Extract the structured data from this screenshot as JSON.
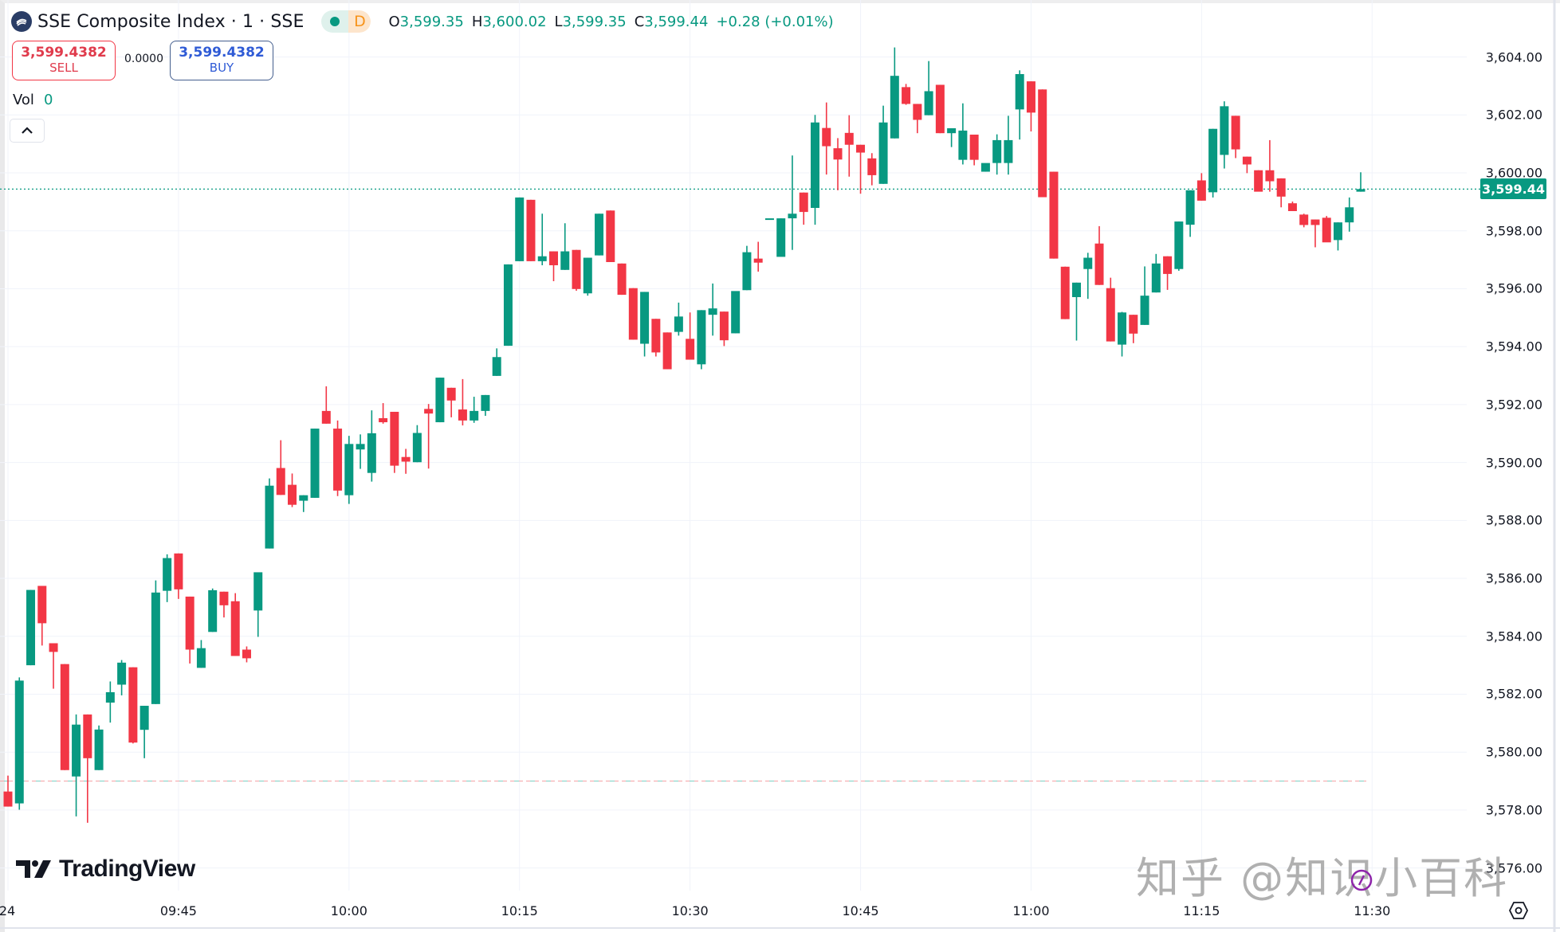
{
  "header": {
    "title": "SSE Composite Index · 1 · SSE",
    "status_delay_label": "D",
    "ohlc": {
      "o_label": "O",
      "o": "3,599.35",
      "h_label": "H",
      "h": "3,600.02",
      "l_label": "L",
      "l": "3,599.35",
      "c_label": "C",
      "c": "3,599.44",
      "change": "+0.28 (+0.01%)"
    }
  },
  "trade": {
    "sell_price": "3,599.4382",
    "sell_label": "SELL",
    "spread": "0.0000",
    "buy_price": "3,599.4382",
    "buy_label": "BUY"
  },
  "volume": {
    "label": "Vol",
    "value": "0"
  },
  "price_axis": {
    "labels": [
      "3,604.00",
      "3,602.00",
      "3,600.00",
      "3,598.00",
      "3,596.00",
      "3,594.00",
      "3,592.00",
      "3,590.00",
      "3,588.00",
      "3,586.00",
      "3,584.00",
      "3,582.00",
      "3,580.00",
      "3,578.00",
      "3,576.00"
    ],
    "last_price": "3,599.44"
  },
  "time_axis": {
    "labels": [
      "24",
      "09:45",
      "10:00",
      "10:15",
      "10:30",
      "10:45",
      "11:00",
      "11:15",
      "11:30"
    ]
  },
  "branding": {
    "logo_text": "TradingView"
  },
  "watermark": "知乎 @知识小百科",
  "colors": {
    "up": "#089981",
    "down": "#f23645",
    "grid": "#f0f3fa",
    "last_price": "#089981"
  },
  "chart_data": {
    "type": "candlestick",
    "title": "SSE Composite Index · 1 · SSE",
    "interval": "1 minute",
    "xlabel": "",
    "ylabel": "",
    "ylim": [
      3575.6,
      3605.3
    ],
    "grid": true,
    "x_ticks": [
      "09:45",
      "10:00",
      "10:15",
      "10:30",
      "10:45",
      "11:00",
      "11:15",
      "11:30"
    ],
    "y_ticks": [
      3604,
      3602,
      3600,
      3598,
      3596,
      3594,
      3592,
      3590,
      3588,
      3586,
      3584,
      3582,
      3580,
      3578,
      3576
    ],
    "last_price": 3599.44,
    "base_line": 3579.0,
    "candles": [
      {
        "o": 3578.64,
        "h": 3579.19,
        "l": 3578.12,
        "c": 3578.12
      },
      {
        "o": 3578.23,
        "h": 3582.58,
        "l": 3578.01,
        "c": 3582.47
      },
      {
        "o": 3583.0,
        "h": 3585.6,
        "l": 3583.0,
        "c": 3585.6
      },
      {
        "o": 3585.74,
        "h": 3585.74,
        "l": 3583.68,
        "c": 3584.45
      },
      {
        "o": 3583.76,
        "h": 3583.76,
        "l": 3582.19,
        "c": 3583.46
      },
      {
        "o": 3583.04,
        "h": 3583.04,
        "l": 3579.38,
        "c": 3579.38
      },
      {
        "o": 3579.16,
        "h": 3581.3,
        "l": 3577.78,
        "c": 3580.95
      },
      {
        "o": 3581.3,
        "h": 3581.3,
        "l": 3577.56,
        "c": 3579.79
      },
      {
        "o": 3579.38,
        "h": 3580.92,
        "l": 3579.38,
        "c": 3580.78
      },
      {
        "o": 3581.71,
        "h": 3582.44,
        "l": 3581.02,
        "c": 3582.07
      },
      {
        "o": 3582.33,
        "h": 3583.18,
        "l": 3581.96,
        "c": 3583.09
      },
      {
        "o": 3582.93,
        "h": 3582.93,
        "l": 3580.3,
        "c": 3580.33
      },
      {
        "o": 3580.77,
        "h": 3581.6,
        "l": 3579.79,
        "c": 3581.6
      },
      {
        "o": 3581.66,
        "h": 3585.93,
        "l": 3581.66,
        "c": 3585.51
      },
      {
        "o": 3585.57,
        "h": 3586.83,
        "l": 3585.18,
        "c": 3586.7
      },
      {
        "o": 3586.86,
        "h": 3586.86,
        "l": 3585.29,
        "c": 3585.62
      },
      {
        "o": 3585.37,
        "h": 3585.37,
        "l": 3583.06,
        "c": 3583.54
      },
      {
        "o": 3582.91,
        "h": 3583.87,
        "l": 3582.91,
        "c": 3583.59
      },
      {
        "o": 3584.15,
        "h": 3585.65,
        "l": 3584.15,
        "c": 3585.59
      },
      {
        "o": 3585.54,
        "h": 3585.54,
        "l": 3584.65,
        "c": 3585.07
      },
      {
        "o": 3585.21,
        "h": 3585.49,
        "l": 3583.32,
        "c": 3583.32
      },
      {
        "o": 3583.54,
        "h": 3583.65,
        "l": 3583.1,
        "c": 3583.24
      },
      {
        "o": 3584.89,
        "h": 3586.16,
        "l": 3583.98,
        "c": 3586.21
      },
      {
        "o": 3587.03,
        "h": 3589.45,
        "l": 3587.03,
        "c": 3589.2
      },
      {
        "o": 3589.81,
        "h": 3590.77,
        "l": 3588.88,
        "c": 3588.88
      },
      {
        "o": 3589.23,
        "h": 3589.62,
        "l": 3588.46,
        "c": 3588.54
      },
      {
        "o": 3588.68,
        "h": 3588.87,
        "l": 3588.29,
        "c": 3588.87
      },
      {
        "o": 3588.78,
        "h": 3591.17,
        "l": 3588.78,
        "c": 3591.17
      },
      {
        "o": 3591.78,
        "h": 3592.63,
        "l": 3591.34,
        "c": 3591.34
      },
      {
        "o": 3591.17,
        "h": 3591.45,
        "l": 3588.84,
        "c": 3589.03
      },
      {
        "o": 3588.87,
        "h": 3590.92,
        "l": 3588.57,
        "c": 3590.64
      },
      {
        "o": 3590.45,
        "h": 3590.97,
        "l": 3589.78,
        "c": 3590.64
      },
      {
        "o": 3589.64,
        "h": 3591.8,
        "l": 3589.34,
        "c": 3591.01
      },
      {
        "o": 3591.53,
        "h": 3592.05,
        "l": 3591.34,
        "c": 3591.39
      },
      {
        "o": 3591.75,
        "h": 3591.75,
        "l": 3589.64,
        "c": 3589.89
      },
      {
        "o": 3590.19,
        "h": 3590.47,
        "l": 3589.61,
        "c": 3590.03
      },
      {
        "o": 3590.01,
        "h": 3591.29,
        "l": 3590.01,
        "c": 3591.02
      },
      {
        "o": 3591.85,
        "h": 3592.02,
        "l": 3589.79,
        "c": 3591.69
      },
      {
        "o": 3591.39,
        "h": 3592.93,
        "l": 3591.39,
        "c": 3592.93
      },
      {
        "o": 3592.58,
        "h": 3592.58,
        "l": 3591.56,
        "c": 3592.14
      },
      {
        "o": 3591.83,
        "h": 3592.88,
        "l": 3591.28,
        "c": 3591.45
      },
      {
        "o": 3591.45,
        "h": 3592.27,
        "l": 3591.37,
        "c": 3591.78
      },
      {
        "o": 3591.78,
        "h": 3592.33,
        "l": 3591.61,
        "c": 3592.33
      },
      {
        "o": 3592.99,
        "h": 3593.94,
        "l": 3592.99,
        "c": 3593.64
      },
      {
        "o": 3594.03,
        "h": 3596.84,
        "l": 3594.03,
        "c": 3596.84
      },
      {
        "o": 3596.95,
        "h": 3599.15,
        "l": 3596.95,
        "c": 3599.15
      },
      {
        "o": 3599.07,
        "h": 3599.07,
        "l": 3596.95,
        "c": 3596.95
      },
      {
        "o": 3596.95,
        "h": 3598.59,
        "l": 3596.81,
        "c": 3597.12
      },
      {
        "o": 3597.29,
        "h": 3597.29,
        "l": 3596.26,
        "c": 3596.81
      },
      {
        "o": 3596.65,
        "h": 3598.26,
        "l": 3596.65,
        "c": 3597.29
      },
      {
        "o": 3597.34,
        "h": 3597.34,
        "l": 3595.93,
        "c": 3595.99
      },
      {
        "o": 3595.84,
        "h": 3597.07,
        "l": 3595.76,
        "c": 3597.07
      },
      {
        "o": 3597.15,
        "h": 3598.59,
        "l": 3597.15,
        "c": 3598.59
      },
      {
        "o": 3598.7,
        "h": 3598.7,
        "l": 3596.92,
        "c": 3596.92
      },
      {
        "o": 3596.87,
        "h": 3596.87,
        "l": 3595.79,
        "c": 3595.79
      },
      {
        "o": 3596.02,
        "h": 3596.02,
        "l": 3594.24,
        "c": 3594.24
      },
      {
        "o": 3594.1,
        "h": 3595.89,
        "l": 3593.66,
        "c": 3595.89
      },
      {
        "o": 3594.96,
        "h": 3594.96,
        "l": 3593.66,
        "c": 3593.8
      },
      {
        "o": 3594.49,
        "h": 3594.49,
        "l": 3593.22,
        "c": 3593.22
      },
      {
        "o": 3594.51,
        "h": 3595.52,
        "l": 3594.38,
        "c": 3595.04
      },
      {
        "o": 3594.27,
        "h": 3595.18,
        "l": 3594.27,
        "c": 3593.55
      },
      {
        "o": 3593.39,
        "h": 3595.26,
        "l": 3593.22,
        "c": 3595.26
      },
      {
        "o": 3595.1,
        "h": 3596.18,
        "l": 3594.38,
        "c": 3595.32
      },
      {
        "o": 3595.21,
        "h": 3595.21,
        "l": 3594.02,
        "c": 3594.22
      },
      {
        "o": 3594.46,
        "h": 3595.81,
        "l": 3594.46,
        "c": 3595.92
      },
      {
        "o": 3595.95,
        "h": 3597.48,
        "l": 3595.95,
        "c": 3597.26
      },
      {
        "o": 3597.04,
        "h": 3597.62,
        "l": 3596.59,
        "c": 3596.9
      },
      {
        "o": 3598.43,
        "h": 3598.43,
        "l": 3598.43,
        "c": 3598.43
      },
      {
        "o": 3597.1,
        "h": 3598.43,
        "l": 3597.12,
        "c": 3598.43
      },
      {
        "o": 3598.43,
        "h": 3600.6,
        "l": 3597.34,
        "c": 3598.59
      },
      {
        "o": 3599.32,
        "h": 3599.32,
        "l": 3598.21,
        "c": 3598.65
      },
      {
        "o": 3598.79,
        "h": 3602.0,
        "l": 3598.21,
        "c": 3601.74
      },
      {
        "o": 3601.55,
        "h": 3602.43,
        "l": 3599.94,
        "c": 3600.92
      },
      {
        "o": 3600.85,
        "h": 3601.2,
        "l": 3599.4,
        "c": 3600.46
      },
      {
        "o": 3601.38,
        "h": 3601.99,
        "l": 3599.87,
        "c": 3600.97
      },
      {
        "o": 3600.97,
        "h": 3600.97,
        "l": 3599.28,
        "c": 3600.7
      },
      {
        "o": 3600.5,
        "h": 3600.68,
        "l": 3599.57,
        "c": 3599.92
      },
      {
        "o": 3599.62,
        "h": 3602.32,
        "l": 3599.62,
        "c": 3601.74
      },
      {
        "o": 3601.19,
        "h": 3604.33,
        "l": 3601.19,
        "c": 3603.35
      },
      {
        "o": 3602.96,
        "h": 3603.07,
        "l": 3602.35,
        "c": 3602.38
      },
      {
        "o": 3602.38,
        "h": 3602.38,
        "l": 3601.37,
        "c": 3601.83
      },
      {
        "o": 3601.99,
        "h": 3603.86,
        "l": 3601.99,
        "c": 3602.82
      },
      {
        "o": 3603.04,
        "h": 3603.04,
        "l": 3601.37,
        "c": 3601.37
      },
      {
        "o": 3601.37,
        "h": 3601.54,
        "l": 3600.89,
        "c": 3601.54
      },
      {
        "o": 3600.45,
        "h": 3602.4,
        "l": 3600.29,
        "c": 3601.46
      },
      {
        "o": 3601.32,
        "h": 3601.32,
        "l": 3600.26,
        "c": 3600.45
      },
      {
        "o": 3600.04,
        "h": 3600.18,
        "l": 3600.04,
        "c": 3600.34
      },
      {
        "o": 3600.34,
        "h": 3601.33,
        "l": 3599.94,
        "c": 3601.13
      },
      {
        "o": 3600.34,
        "h": 3601.97,
        "l": 3599.94,
        "c": 3601.13
      },
      {
        "o": 3602.19,
        "h": 3603.54,
        "l": 3601.15,
        "c": 3603.41
      },
      {
        "o": 3603.16,
        "h": 3603.16,
        "l": 3601.43,
        "c": 3602.08
      },
      {
        "o": 3602.88,
        "h": 3602.88,
        "l": 3599.16,
        "c": 3599.16
      },
      {
        "o": 3600.04,
        "h": 3600.04,
        "l": 3597.04,
        "c": 3597.04
      },
      {
        "o": 3596.76,
        "h": 3596.76,
        "l": 3594.95,
        "c": 3594.95
      },
      {
        "o": 3595.71,
        "h": 3596.21,
        "l": 3594.21,
        "c": 3596.21
      },
      {
        "o": 3596.68,
        "h": 3597.24,
        "l": 3595.65,
        "c": 3597.07
      },
      {
        "o": 3597.56,
        "h": 3598.16,
        "l": 3596.13,
        "c": 3596.13
      },
      {
        "o": 3596.02,
        "h": 3596.38,
        "l": 3594.18,
        "c": 3594.18
      },
      {
        "o": 3594.07,
        "h": 3595.2,
        "l": 3593.66,
        "c": 3595.18
      },
      {
        "o": 3595.1,
        "h": 3595.1,
        "l": 3594.12,
        "c": 3594.45
      },
      {
        "o": 3594.75,
        "h": 3596.77,
        "l": 3594.75,
        "c": 3595.76
      },
      {
        "o": 3595.87,
        "h": 3597.2,
        "l": 3595.87,
        "c": 3596.87
      },
      {
        "o": 3597.12,
        "h": 3597.12,
        "l": 3595.96,
        "c": 3596.51
      },
      {
        "o": 3596.68,
        "h": 3598.32,
        "l": 3596.62,
        "c": 3598.32
      },
      {
        "o": 3598.21,
        "h": 3599.36,
        "l": 3597.79,
        "c": 3599.4
      },
      {
        "o": 3599.74,
        "h": 3599.99,
        "l": 3599.04,
        "c": 3599.04
      },
      {
        "o": 3599.33,
        "h": 3601.52,
        "l": 3599.15,
        "c": 3601.52
      },
      {
        "o": 3600.62,
        "h": 3602.47,
        "l": 3600.15,
        "c": 3602.3
      },
      {
        "o": 3601.97,
        "h": 3601.97,
        "l": 3600.51,
        "c": 3600.81
      },
      {
        "o": 3600.56,
        "h": 3600.56,
        "l": 3599.99,
        "c": 3600.29
      },
      {
        "o": 3600.09,
        "h": 3600.09,
        "l": 3599.38,
        "c": 3599.35
      },
      {
        "o": 3600.09,
        "h": 3601.13,
        "l": 3599.35,
        "c": 3599.71
      },
      {
        "o": 3599.81,
        "h": 3599.81,
        "l": 3598.81,
        "c": 3599.18
      },
      {
        "o": 3598.95,
        "h": 3599.01,
        "l": 3598.68,
        "c": 3598.68
      },
      {
        "o": 3598.56,
        "h": 3598.59,
        "l": 3598.12,
        "c": 3598.2
      },
      {
        "o": 3598.39,
        "h": 3598.39,
        "l": 3597.43,
        "c": 3598.2
      },
      {
        "o": 3598.45,
        "h": 3598.51,
        "l": 3597.65,
        "c": 3597.6
      },
      {
        "o": 3597.68,
        "h": 3598.29,
        "l": 3597.32,
        "c": 3598.29
      },
      {
        "o": 3598.29,
        "h": 3599.15,
        "l": 3597.97,
        "c": 3598.81
      },
      {
        "o": 3599.35,
        "h": 3600.02,
        "l": 3599.35,
        "c": 3599.44
      }
    ]
  }
}
